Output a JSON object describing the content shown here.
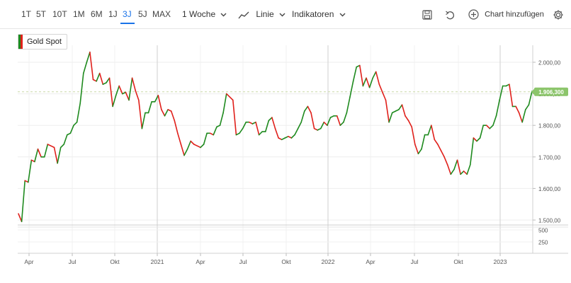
{
  "toolbar": {
    "ranges": [
      "1T",
      "5T",
      "10T",
      "1M",
      "6M",
      "1J",
      "3J",
      "5J",
      "MAX"
    ],
    "active_range": "3J",
    "interval_label": "1 Woche",
    "chart_type_label": "Linie",
    "indicators_label": "Indikatoren",
    "add_chart_label": "Chart hinzufügen"
  },
  "legend": {
    "label": "Gold Spot"
  },
  "last_price_label": "1.906,300",
  "colors": {
    "up": "#1e8a1e",
    "down": "#e0201b",
    "accent": "#1a73e8",
    "last_price": "#8cc56b"
  },
  "icons": [
    "chevron-down-icon",
    "line-chart-icon",
    "save-icon",
    "undo-icon",
    "plus-circle-icon",
    "gear-icon"
  ],
  "chart_data": {
    "type": "line",
    "title": "Gold Spot",
    "x_ticks": [
      "Apr",
      "Jul",
      "Okt",
      "2021",
      "Apr",
      "Jul",
      "Okt",
      "2022",
      "Apr",
      "Jul",
      "Okt",
      "2023"
    ],
    "y_ticks": [
      "2.000,00",
      "1.900,00",
      "1.800,00",
      "1.700,00",
      "1.600,00",
      "1.500,00"
    ],
    "volume_ticks": [
      "500",
      "250"
    ],
    "ylim": [
      1480,
      2040
    ],
    "last_value": 1906.3,
    "grid": true,
    "series": [
      {
        "values": [
          1520,
          1495,
          1625,
          1620,
          1690,
          1685,
          1725,
          1700,
          1700,
          1740,
          1735,
          1730,
          1680,
          1730,
          1740,
          1770,
          1775,
          1800,
          1810,
          1870,
          1965,
          2000,
          2032,
          1945,
          1940,
          1965,
          1930,
          1935,
          1950,
          1860,
          1895,
          1925,
          1900,
          1905,
          1880,
          1950,
          1910,
          1880,
          1790,
          1840,
          1840,
          1875,
          1875,
          1895,
          1850,
          1830,
          1850,
          1845,
          1815,
          1775,
          1740,
          1705,
          1725,
          1750,
          1740,
          1735,
          1730,
          1740,
          1775,
          1775,
          1770,
          1795,
          1800,
          1840,
          1900,
          1890,
          1880,
          1770,
          1775,
          1790,
          1810,
          1810,
          1805,
          1810,
          1770,
          1780,
          1780,
          1815,
          1825,
          1790,
          1760,
          1755,
          1760,
          1765,
          1760,
          1770,
          1790,
          1810,
          1845,
          1860,
          1840,
          1790,
          1785,
          1790,
          1810,
          1800,
          1825,
          1830,
          1830,
          1800,
          1810,
          1840,
          1890,
          1940,
          1985,
          1990,
          1925,
          1950,
          1920,
          1950,
          1970,
          1930,
          1905,
          1880,
          1810,
          1840,
          1845,
          1850,
          1865,
          1830,
          1815,
          1795,
          1740,
          1710,
          1725,
          1770,
          1770,
          1800,
          1755,
          1740,
          1720,
          1700,
          1675,
          1645,
          1660,
          1690,
          1645,
          1655,
          1645,
          1675,
          1760,
          1750,
          1760,
          1800,
          1800,
          1790,
          1800,
          1830,
          1880,
          1925,
          1925,
          1930,
          1860,
          1860,
          1840,
          1810,
          1850,
          1865,
          1908
        ]
      }
    ]
  }
}
